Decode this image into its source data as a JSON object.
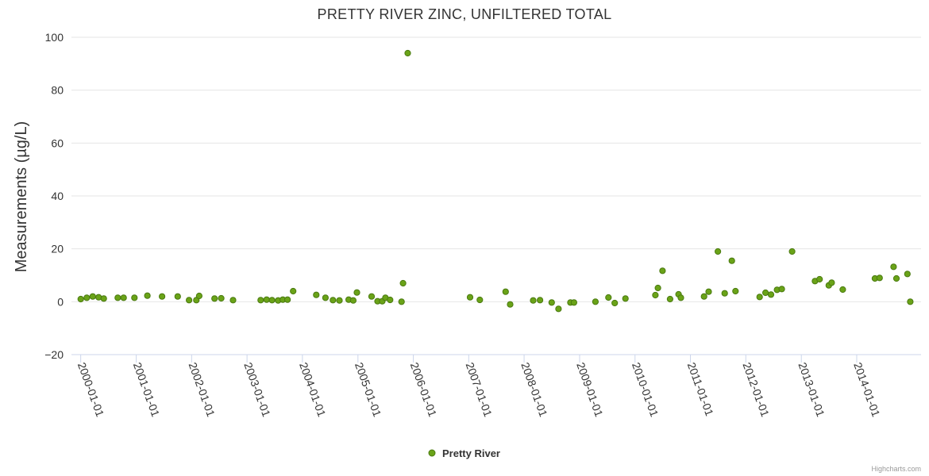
{
  "chart_data": {
    "type": "scatter",
    "title": "PRETTY RIVER ZINC, UNFILTERED TOTAL",
    "xlabel": "",
    "ylabel": "Measurements (µg/L)",
    "ylim": [
      -20,
      100
    ],
    "yticks": [
      100,
      80,
      60,
      40,
      20,
      0,
      -20
    ],
    "xlim": [
      "1999-11-01",
      "2015-03-01"
    ],
    "xticks": [
      "2000-01-01",
      "2001-01-01",
      "2002-01-01",
      "2003-01-01",
      "2004-01-01",
      "2005-01-01",
      "2006-01-01",
      "2007-01-01",
      "2008-01-01",
      "2009-01-01",
      "2010-01-01",
      "2011-01-01",
      "2012-01-01",
      "2013-01-01",
      "2014-01-01"
    ],
    "grid": true,
    "legend_position": "bottom-center",
    "series": [
      {
        "name": "Pretty River",
        "color": "#6aa318",
        "edge_color": "#4a7a10",
        "points": [
          [
            "2000-01-01",
            1
          ],
          [
            "2000-02-10",
            1.5
          ],
          [
            "2000-03-20",
            2
          ],
          [
            "2000-04-28",
            1.7
          ],
          [
            "2000-06-01",
            1.2
          ],
          [
            "2000-09-01",
            1.5
          ],
          [
            "2000-10-10",
            1.5
          ],
          [
            "2000-12-20",
            1.5
          ],
          [
            "2001-03-15",
            2.3
          ],
          [
            "2001-06-20",
            2
          ],
          [
            "2001-10-01",
            2
          ],
          [
            "2001-12-15",
            0.6
          ],
          [
            "2002-02-01",
            0.6
          ],
          [
            "2002-02-20",
            2.2
          ],
          [
            "2002-06-01",
            1.2
          ],
          [
            "2002-07-15",
            1.3
          ],
          [
            "2002-10-01",
            0.6
          ],
          [
            "2003-04-01",
            0.6
          ],
          [
            "2003-05-10",
            0.8
          ],
          [
            "2003-06-15",
            0.6
          ],
          [
            "2003-07-25",
            0.5
          ],
          [
            "2003-08-25",
            0.8
          ],
          [
            "2003-09-25",
            0.8
          ],
          [
            "2003-11-01",
            4
          ],
          [
            "2004-04-01",
            2.6
          ],
          [
            "2004-06-01",
            1.5
          ],
          [
            "2004-07-20",
            0.6
          ],
          [
            "2004-09-01",
            0.5
          ],
          [
            "2004-11-01",
            0.8
          ],
          [
            "2004-12-01",
            0.5
          ],
          [
            "2004-12-25",
            3.5
          ],
          [
            "2005-04-01",
            2
          ],
          [
            "2005-05-10",
            0.2
          ],
          [
            "2005-06-10",
            0.2
          ],
          [
            "2005-07-01",
            1.5
          ],
          [
            "2005-08-01",
            0.7
          ],
          [
            "2005-10-15",
            0
          ],
          [
            "2005-10-25",
            7
          ],
          [
            "2005-11-25",
            94
          ],
          [
            "2007-01-10",
            1.7
          ],
          [
            "2007-03-15",
            0.7
          ],
          [
            "2007-09-01",
            3.8
          ],
          [
            "2007-10-01",
            -1
          ],
          [
            "2008-03-01",
            0.5
          ],
          [
            "2008-04-15",
            0.6
          ],
          [
            "2008-07-01",
            -0.3
          ],
          [
            "2008-08-15",
            -2.7
          ],
          [
            "2008-11-01",
            -0.3
          ],
          [
            "2008-11-25",
            -0.3
          ],
          [
            "2009-04-15",
            0
          ],
          [
            "2009-07-10",
            1.6
          ],
          [
            "2009-08-20",
            -0.5
          ],
          [
            "2009-10-30",
            1.2
          ],
          [
            "2010-05-15",
            2.5
          ],
          [
            "2010-06-01",
            5.2
          ],
          [
            "2010-07-01",
            11.7
          ],
          [
            "2010-08-20",
            1
          ],
          [
            "2010-10-15",
            2.8
          ],
          [
            "2010-10-30",
            1.5
          ],
          [
            "2011-04-01",
            2
          ],
          [
            "2011-05-01",
            3.8
          ],
          [
            "2011-07-01",
            19
          ],
          [
            "2011-08-15",
            3.2
          ],
          [
            "2011-10-01",
            15.5
          ],
          [
            "2011-10-25",
            4
          ],
          [
            "2012-04-01",
            1.8
          ],
          [
            "2012-05-10",
            3.4
          ],
          [
            "2012-06-15",
            2.7
          ],
          [
            "2012-07-25",
            4.5
          ],
          [
            "2012-08-25",
            4.8
          ],
          [
            "2012-11-01",
            19
          ],
          [
            "2013-04-01",
            7.8
          ],
          [
            "2013-05-01",
            8.5
          ],
          [
            "2013-07-01",
            6.2
          ],
          [
            "2013-07-20",
            7.2
          ],
          [
            "2013-10-01",
            4.6
          ],
          [
            "2014-05-01",
            8.8
          ],
          [
            "2014-06-01",
            9
          ],
          [
            "2014-09-01",
            13.2
          ],
          [
            "2014-09-20",
            8.8
          ],
          [
            "2014-12-01",
            10.5
          ],
          [
            "2014-12-20",
            0
          ]
        ]
      }
    ]
  },
  "credits": "Highcharts.com"
}
